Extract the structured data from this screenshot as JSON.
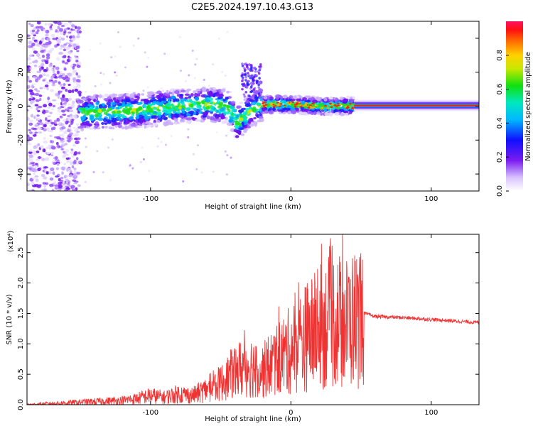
{
  "title": "C2E5.2024.197.10.43.G13",
  "chart_data": [
    {
      "type": "heatmap",
      "xlabel": "Height of straight line (km)",
      "ylabel": "Frequency (Hz)",
      "xlim": [
        -188,
        134
      ],
      "ylim": [
        -50,
        50
      ],
      "x_ticks": [
        "-100",
        "0",
        "100"
      ],
      "y_ticks": [
        "-40",
        "-20",
        "0",
        "20",
        "40"
      ],
      "colorbar": {
        "label": "Normalized spectral amplitude",
        "range": [
          0,
          1
        ],
        "ticks": [
          "0.0",
          "0.2",
          "0.4",
          "0.6",
          "0.8"
        ]
      },
      "ridge": [
        {
          "x": -150,
          "freq": -4
        },
        {
          "x": -120,
          "freq": -3
        },
        {
          "x": -100,
          "freq": -2
        },
        {
          "x": -80,
          "freq": 0
        },
        {
          "x": -60,
          "freq": 1
        },
        {
          "x": -45,
          "freq": 0
        },
        {
          "x": -38,
          "freq": -10
        },
        {
          "x": -30,
          "freq": -3
        },
        {
          "x": -20,
          "freq": 1
        },
        {
          "x": 0,
          "freq": 1
        },
        {
          "x": 20,
          "freq": 0
        },
        {
          "x": 45,
          "freq": 0
        },
        {
          "x": 133,
          "freq": 0
        }
      ]
    },
    {
      "type": "line",
      "xlabel": "Height of straight line (km)",
      "ylabel": "SNR (10 * v/v)",
      "y_multiplier": "(x10⁴)",
      "xlim": [
        -188,
        134
      ],
      "ylim": [
        0,
        2.8
      ],
      "x_ticks": [
        "-100",
        "0",
        "100"
      ],
      "y_ticks": [
        "0.0",
        "0.5",
        "1.0",
        "1.5",
        "2.0",
        "2.5"
      ],
      "color": "#ee3333",
      "series": [
        {
          "x": [
            -188,
            -160,
            -140,
            -120,
            -110,
            -100,
            -90,
            -80,
            -70,
            -60,
            -50,
            -40,
            -30,
            -20,
            -10,
            0,
            10,
            20,
            30,
            40,
            52,
            60,
            80,
            100,
            120,
            134
          ],
          "y": [
            0.0,
            0.03,
            0.05,
            0.07,
            0.1,
            0.15,
            0.12,
            0.18,
            0.15,
            0.25,
            0.35,
            0.55,
            0.65,
            0.55,
            0.75,
            0.9,
            1.1,
            1.25,
            1.4,
            1.35,
            1.5,
            1.45,
            1.43,
            1.4,
            1.37,
            1.35
          ]
        }
      ]
    }
  ]
}
